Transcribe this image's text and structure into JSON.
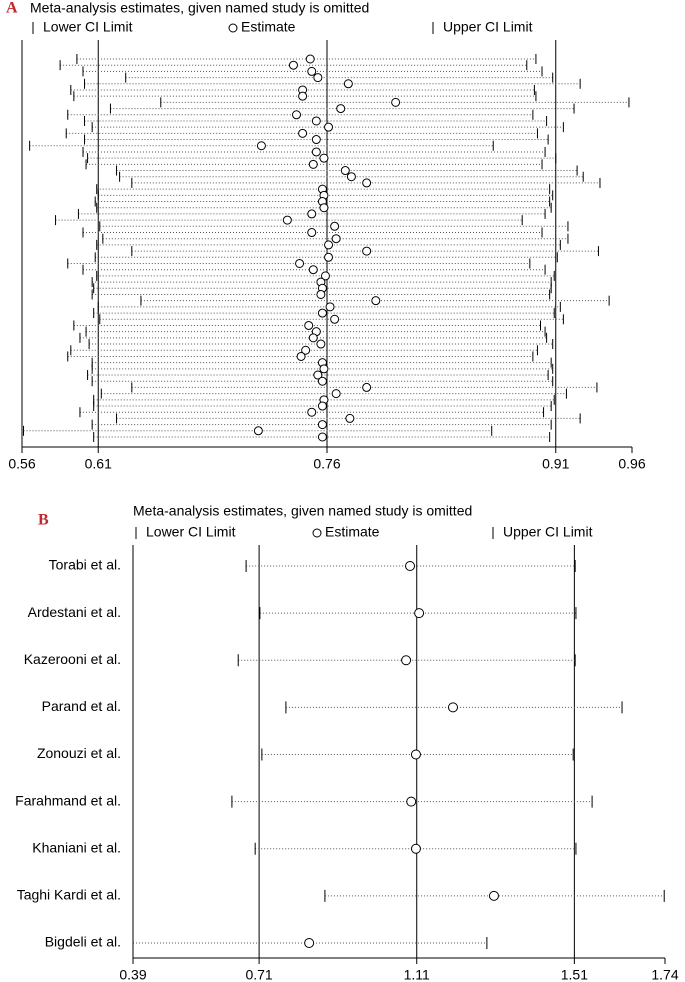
{
  "chart_data": [
    {
      "type": "sensitivity",
      "panel_label": "A",
      "title": "Meta-analysis estimates, given named study is omitted",
      "xlim": [
        0.56,
        0.96
      ],
      "xticks": [
        0.56,
        0.61,
        0.76,
        0.91,
        0.96
      ],
      "reference_lines": [
        0.61,
        0.76,
        0.91
      ],
      "series": [
        {
          "name": "Lower CI Limit",
          "marker": "|",
          "color": "#000000",
          "values": [
            0.596,
            0.585,
            0.6,
            0.628,
            0.601,
            0.592,
            0.594,
            0.651,
            0.618,
            0.59,
            0.601,
            0.606,
            0.589,
            0.601,
            0.565,
            0.6,
            0.603,
            0.602,
            0.622,
            0.624,
            0.632,
            0.609,
            0.61,
            0.608,
            0.609,
            0.597,
            0.582,
            0.611,
            0.6,
            0.613,
            0.609,
            0.632,
            0.608,
            0.59,
            0.6,
            0.609,
            0.606,
            0.607,
            0.606,
            0.638,
            0.61,
            0.607,
            0.611,
            0.594,
            0.602,
            0.598,
            0.604,
            0.592,
            0.59,
            0.606,
            0.606,
            0.603,
            0.606,
            0.632,
            0.612,
            0.607,
            0.607,
            0.598,
            0.622,
            0.606,
            0.561,
            0.607
          ]
        },
        {
          "name": "Estimate",
          "marker": "o",
          "color": "#000000",
          "values": [
            0.749,
            0.738,
            0.75,
            0.754,
            0.774,
            0.744,
            0.744,
            0.805,
            0.769,
            0.74,
            0.753,
            0.761,
            0.744,
            0.753,
            0.717,
            0.753,
            0.758,
            0.751,
            0.772,
            0.776,
            0.786,
            0.757,
            0.758,
            0.757,
            0.758,
            0.75,
            0.734,
            0.765,
            0.75,
            0.766,
            0.761,
            0.786,
            0.761,
            0.742,
            0.751,
            0.759,
            0.756,
            0.757,
            0.756,
            0.792,
            0.762,
            0.757,
            0.765,
            0.748,
            0.753,
            0.751,
            0.756,
            0.746,
            0.743,
            0.757,
            0.758,
            0.754,
            0.757,
            0.786,
            0.766,
            0.758,
            0.757,
            0.75,
            0.775,
            0.757,
            0.715,
            0.757
          ]
        },
        {
          "name": "Upper CI Limit",
          "marker": "|",
          "color": "#000000",
          "values": [
            0.897,
            0.891,
            0.901,
            0.908,
            0.926,
            0.896,
            0.897,
            0.958,
            0.922,
            0.895,
            0.904,
            0.915,
            0.898,
            0.905,
            0.869,
            0.903,
            0.91,
            0.901,
            0.924,
            0.928,
            0.939,
            0.906,
            0.908,
            0.906,
            0.907,
            0.903,
            0.888,
            0.918,
            0.901,
            0.918,
            0.913,
            0.938,
            0.911,
            0.893,
            0.903,
            0.909,
            0.907,
            0.907,
            0.906,
            0.945,
            0.913,
            0.909,
            0.915,
            0.9,
            0.903,
            0.904,
            0.908,
            0.898,
            0.895,
            0.907,
            0.908,
            0.905,
            0.908,
            0.937,
            0.917,
            0.909,
            0.907,
            0.902,
            0.926,
            0.907,
            0.868,
            0.906
          ]
        }
      ]
    },
    {
      "type": "sensitivity",
      "panel_label": "B",
      "title": "Meta-analysis estimates, given named study is omitted",
      "categories": [
        "Torabi et al.",
        "Ardestani et al.",
        "Kazerooni et al.",
        "Parand et al.",
        "Zonouzi et al.",
        "Farahmand et al.",
        "Khaniani et al.",
        "Taghi Kardi et al.",
        "Bigdeli et al."
      ],
      "xlim": [
        0.39,
        1.74
      ],
      "xticks": [
        0.39,
        0.71,
        1.11,
        1.51,
        1.74
      ],
      "reference_lines": [
        0.71,
        1.11,
        1.51
      ],
      "series": [
        {
          "name": "Lower CI Limit",
          "marker": "|",
          "color": "#000000",
          "values": [
            0.677,
            0.712,
            0.657,
            0.778,
            0.717,
            0.641,
            0.7,
            0.877,
            0.39
          ]
        },
        {
          "name": "Estimate",
          "marker": "o",
          "color": "#000000",
          "values": [
            1.093,
            1.116,
            1.083,
            1.202,
            1.108,
            1.096,
            1.108,
            1.306,
            0.837
          ]
        },
        {
          "name": "Upper CI Limit",
          "marker": "|",
          "color": "#000000",
          "values": [
            1.512,
            1.514,
            1.512,
            1.631,
            1.507,
            1.555,
            1.514,
            1.738,
            1.288
          ]
        }
      ]
    }
  ]
}
